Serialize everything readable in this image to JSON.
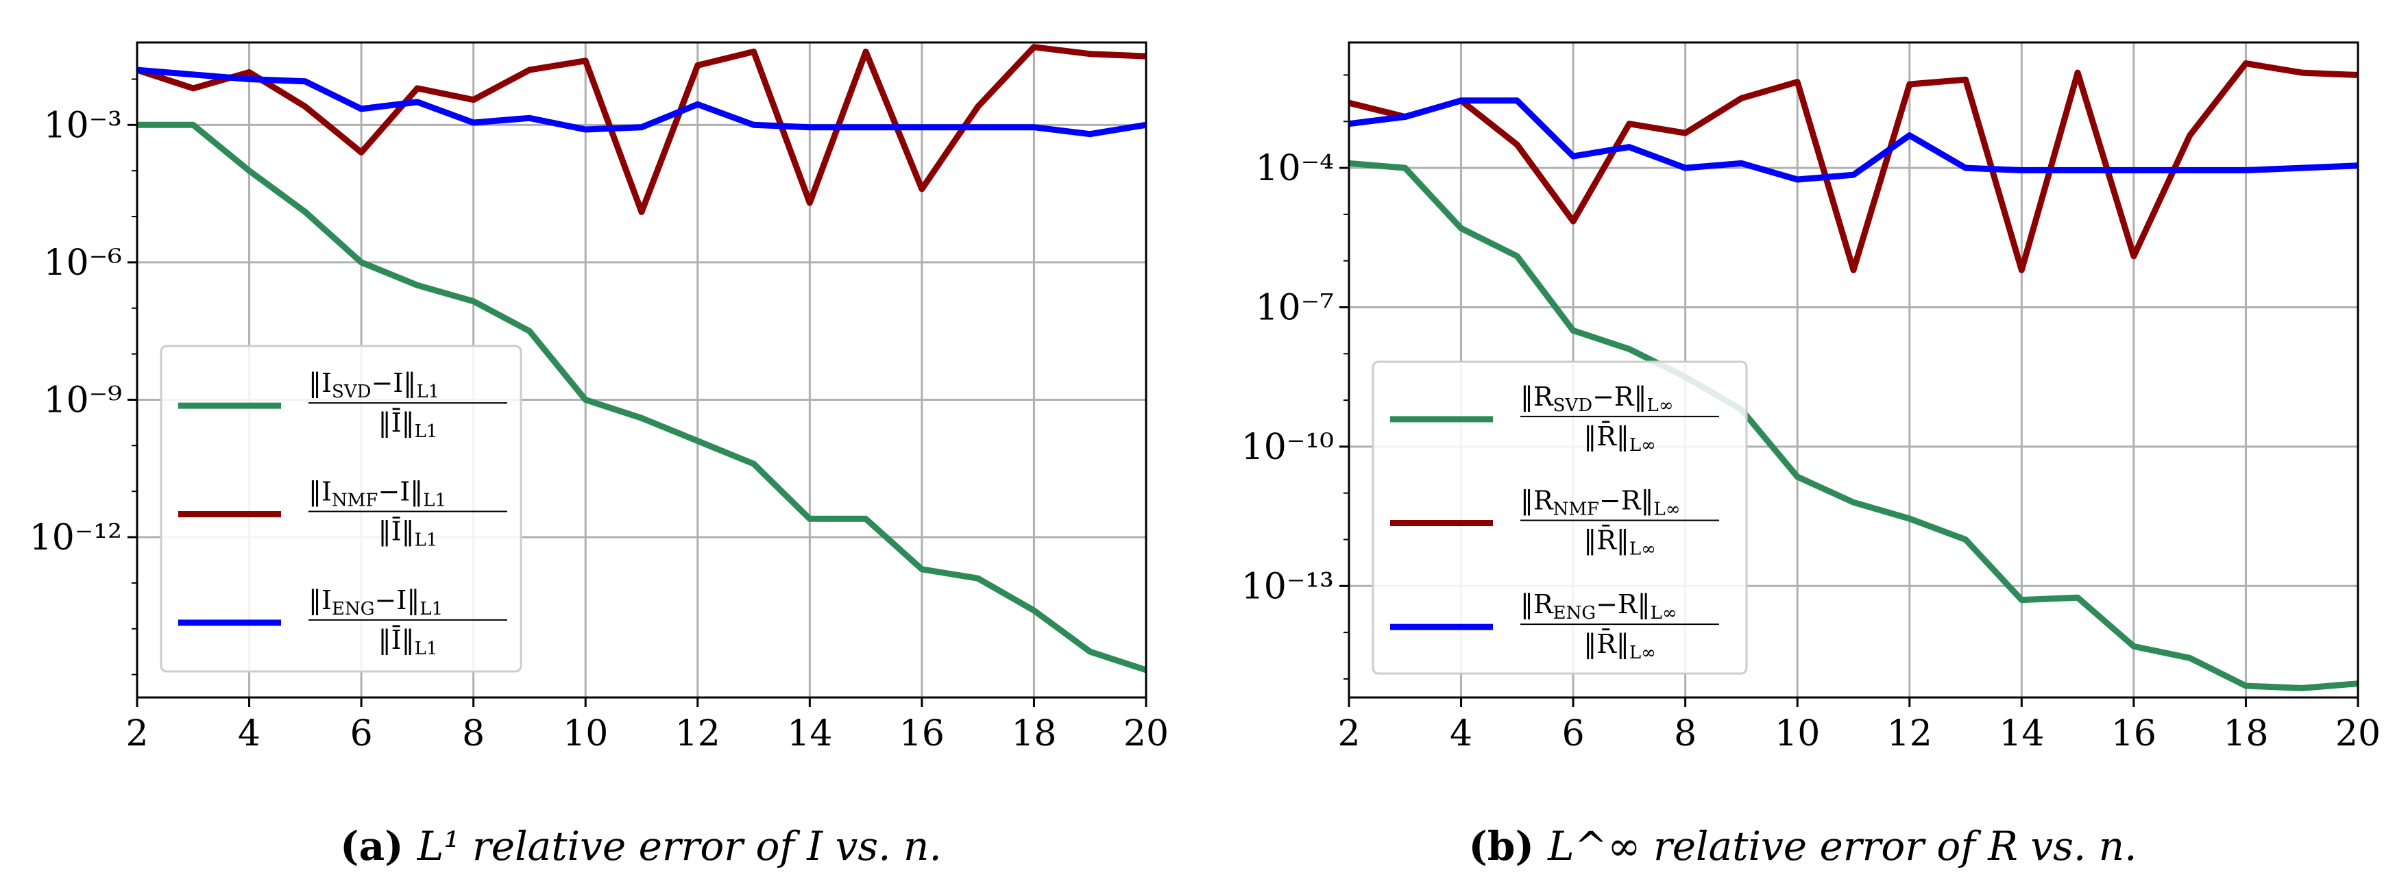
{
  "chart_data": [
    {
      "type": "line",
      "panel_label": "(a)",
      "caption_text": "L¹ relative error of I vs. n.",
      "xlabel": "",
      "ylabel": "",
      "y_scale": "log",
      "xlim": [
        2,
        20
      ],
      "ylim_exp": [
        -15.5,
        -1.2
      ],
      "x_ticks": [
        "2",
        "4",
        "6",
        "8",
        "10",
        "12",
        "14",
        "16",
        "18",
        "20"
      ],
      "y_ticks": [
        {
          "exp": -3,
          "label": "10⁻³"
        },
        {
          "exp": -6,
          "label": "10⁻⁶"
        },
        {
          "exp": -9,
          "label": "10⁻⁹"
        },
        {
          "exp": -12,
          "label": "10⁻¹²"
        }
      ],
      "legend_position": "lower-left",
      "x": [
        2,
        3,
        4,
        5,
        6,
        7,
        8,
        9,
        10,
        11,
        12,
        13,
        14,
        15,
        16,
        17,
        18,
        19,
        20
      ],
      "series": [
        {
          "name": "‖I_SVD − I‖_L1 / ‖Ī‖_L1",
          "legend_num": "‖I",
          "legend_sub": "SVD",
          "legend_num2": "−I‖",
          "legend_sub2": "L1",
          "legend_den": "‖Ī‖",
          "legend_den_sub": "L1",
          "color": "#2e8b57",
          "log10_values": [
            -3.0,
            -3.0,
            -4.0,
            -4.9,
            -6.0,
            -6.5,
            -6.85,
            -7.5,
            -9.0,
            -9.4,
            -9.9,
            -10.4,
            -11.6,
            -11.6,
            -12.7,
            -12.9,
            -13.6,
            -14.5,
            -14.9
          ]
        },
        {
          "name": "‖I_NMF − I‖_L1 / ‖Ī‖_L1",
          "legend_num": "‖I",
          "legend_sub": "NMF",
          "legend_num2": "−I‖",
          "legend_sub2": "L1",
          "legend_den": "‖Ī‖",
          "legend_den_sub": "L1",
          "color": "#8b0000",
          "log10_values": [
            -1.8,
            -2.2,
            -1.85,
            -2.6,
            -3.6,
            -2.2,
            -2.45,
            -1.8,
            -1.6,
            -4.9,
            -1.7,
            -1.4,
            -4.7,
            -1.4,
            -4.4,
            -2.6,
            -1.3,
            -1.45,
            -1.5
          ]
        },
        {
          "name": "‖I_ENG − I‖_L1 / ‖Ī‖_L1",
          "legend_num": "‖I",
          "legend_sub": "ENG",
          "legend_num2": "−I‖",
          "legend_sub2": "L1",
          "legend_den": "‖Ī‖",
          "legend_den_sub": "L1",
          "color": "#0000ff",
          "log10_values": [
            -1.8,
            -1.9,
            -2.0,
            -2.05,
            -2.65,
            -2.5,
            -2.95,
            -2.85,
            -3.1,
            -3.05,
            -2.55,
            -3.0,
            -3.05,
            -3.05,
            -3.05,
            -3.05,
            -3.05,
            -3.2,
            -3.0
          ]
        }
      ]
    },
    {
      "type": "line",
      "panel_label": "(b)",
      "caption_text": "L^∞ relative error of R vs. n.",
      "xlabel": "",
      "ylabel": "",
      "y_scale": "log",
      "xlim": [
        2,
        20
      ],
      "ylim_exp": [
        -15.4,
        -1.3
      ],
      "x_ticks": [
        "2",
        "4",
        "6",
        "8",
        "10",
        "12",
        "14",
        "16",
        "18",
        "20"
      ],
      "y_ticks": [
        {
          "exp": -4,
          "label": "10⁻⁴"
        },
        {
          "exp": -7,
          "label": "10⁻⁷"
        },
        {
          "exp": -10,
          "label": "10⁻¹⁰"
        },
        {
          "exp": -13,
          "label": "10⁻¹³"
        }
      ],
      "legend_position": "lower-left",
      "x": [
        2,
        3,
        4,
        5,
        6,
        7,
        8,
        9,
        10,
        11,
        12,
        13,
        14,
        15,
        16,
        17,
        18,
        19,
        20
      ],
      "series": [
        {
          "name": "‖R_SVD − R‖_L∞ / ‖R̄‖_L∞",
          "legend_num": "‖R",
          "legend_sub": "SVD",
          "legend_num2": "−R‖",
          "legend_sub2": "L∞",
          "legend_den": "‖R̄‖",
          "legend_den_sub": "L∞",
          "color": "#2e8b57",
          "log10_values": [
            -3.9,
            -4.0,
            -5.3,
            -5.9,
            -7.5,
            -7.9,
            -8.5,
            -9.2,
            -10.65,
            -11.2,
            -11.55,
            -12.0,
            -13.3,
            -13.25,
            -14.3,
            -14.55,
            -15.15,
            -15.2,
            -15.1
          ]
        },
        {
          "name": "‖R_NMF − R‖_L∞ / ‖R̄‖_L∞",
          "legend_num": "‖R",
          "legend_sub": "NMF",
          "legend_num2": "−R‖",
          "legend_sub2": "L∞",
          "legend_den": "‖R̄‖",
          "legend_den_sub": "L∞",
          "color": "#8b0000",
          "log10_values": [
            -2.6,
            -2.9,
            -2.55,
            -3.5,
            -5.15,
            -3.05,
            -3.25,
            -2.5,
            -2.15,
            -6.2,
            -2.2,
            -2.1,
            -6.2,
            -1.95,
            -5.9,
            -3.3,
            -1.75,
            -1.95,
            -2.0
          ]
        },
        {
          "name": "‖R_ENG − R‖_L∞ / ‖R̄‖_L∞",
          "legend_num": "‖R",
          "legend_sub": "ENG",
          "legend_num2": "−R‖",
          "legend_sub2": "L∞",
          "legend_den": "‖R̄‖",
          "legend_den_sub": "L∞",
          "color": "#0000ff",
          "log10_values": [
            -3.05,
            -2.9,
            -2.55,
            -2.55,
            -3.75,
            -3.55,
            -4.0,
            -3.9,
            -4.25,
            -4.15,
            -3.3,
            -4.0,
            -4.05,
            -4.05,
            -4.05,
            -4.05,
            -4.05,
            -4.0,
            -3.95
          ]
        }
      ]
    }
  ]
}
